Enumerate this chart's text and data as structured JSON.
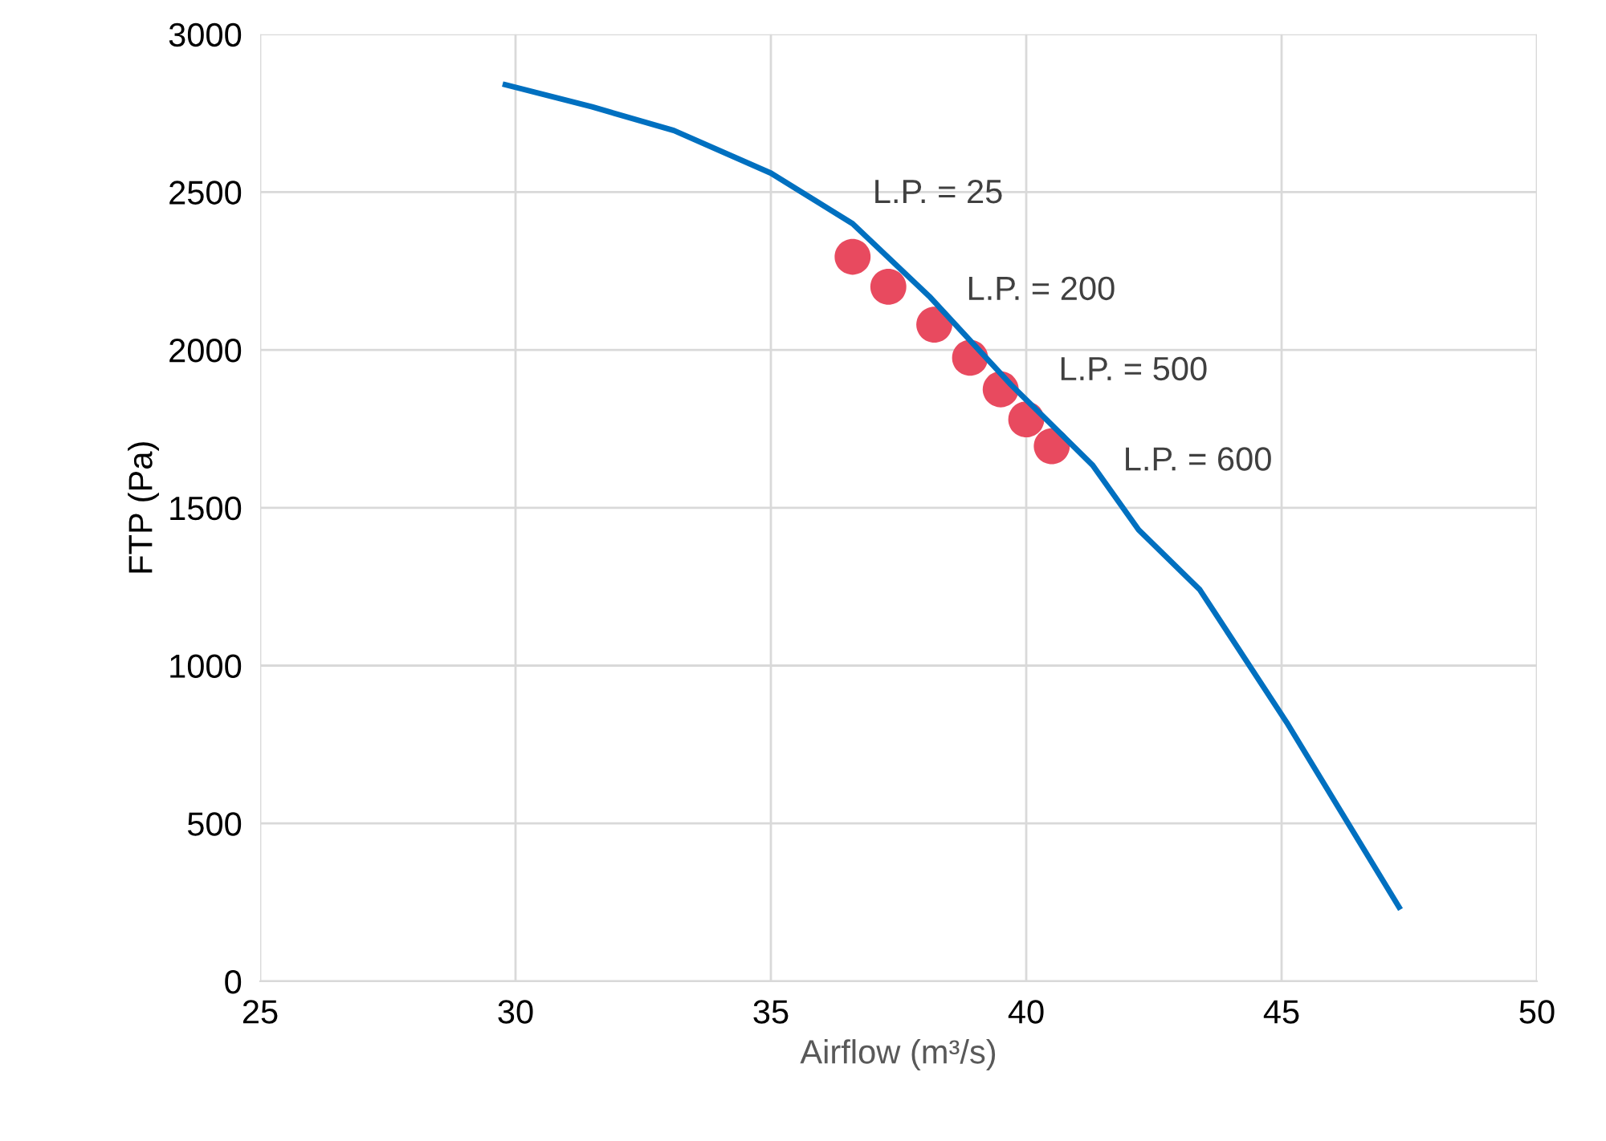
{
  "chart_data": {
    "type": "line",
    "xlabel": "Airflow (m³/s)",
    "ylabel": "FTP (Pa)",
    "xlim": [
      25,
      50
    ],
    "xticks": [
      25,
      30,
      35,
      40,
      45,
      50
    ],
    "ylim": [
      0,
      3000
    ],
    "yticks": [
      0,
      500,
      1000,
      1500,
      2000,
      2500,
      3000
    ],
    "grid": true,
    "legend": false,
    "series": [
      {
        "color": "#0070c0",
        "marker": "none",
        "line_style": "solid",
        "x": [
          29.8,
          31.5,
          33.1,
          35.0,
          36.6,
          38.1,
          39.7,
          41.3,
          42.2,
          43.4,
          45.1,
          47.3
        ],
        "values": [
          2840,
          2770,
          2695,
          2560,
          2400,
          2170,
          1890,
          1635,
          1430,
          1240,
          820,
          235
        ]
      },
      {
        "type": "scatter",
        "color": "#e84a5f",
        "marker": "circle",
        "x": [
          36.6,
          37.3,
          38.2,
          38.9,
          39.5,
          40.0,
          40.5
        ],
        "values": [
          2295,
          2200,
          2080,
          1975,
          1875,
          1780,
          1695
        ]
      }
    ],
    "annotations": [
      {
        "text": "L.P. = 25",
        "x": 36.6,
        "y": 2295
      },
      {
        "text": "L.P. = 200",
        "x": 37.3,
        "y": 2200
      },
      {
        "text": "L.P. = 500",
        "x": 39.5,
        "y": 1875
      },
      {
        "text": "L.P. = 600",
        "x": 40.5,
        "y": 1695
      }
    ]
  }
}
